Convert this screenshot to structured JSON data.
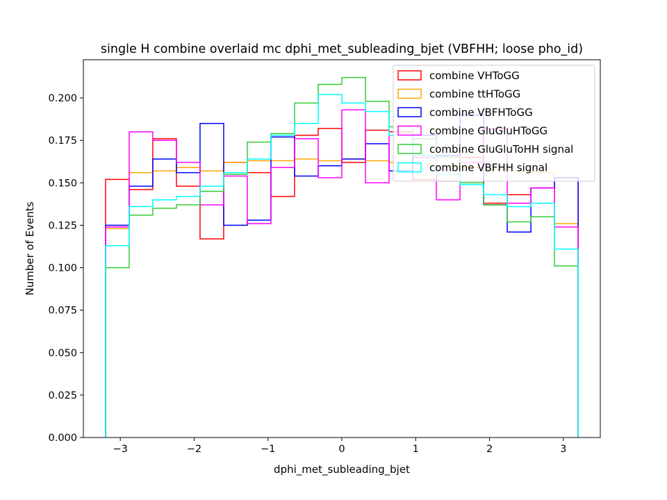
{
  "chart_data": {
    "type": "histogram",
    "title": "single H combine overlaid mc dphi_met_subleading_bjet (VBFHH; loose pho_id)",
    "xlabel": "dphi_met_subleading_bjet",
    "ylabel": "Number of Events",
    "xlim": [
      -3.5,
      3.5
    ],
    "ylim": [
      0.0,
      0.2225
    ],
    "xticks": [
      -3,
      -2,
      -1,
      0,
      1,
      2,
      3
    ],
    "xtick_labels": [
      "−3",
      "−2",
      "−1",
      "0",
      "1",
      "2",
      "3"
    ],
    "yticks": [
      0.0,
      0.025,
      0.05,
      0.075,
      0.1,
      0.125,
      0.15,
      0.175,
      0.2
    ],
    "ytick_labels": [
      "0.000",
      "0.025",
      "0.050",
      "0.075",
      "0.100",
      "0.125",
      "0.150",
      "0.175",
      "0.200"
    ],
    "bin_edges": [
      -3.2,
      -2.88,
      -2.56,
      -2.24,
      -1.92,
      -1.6,
      -1.28,
      -0.96,
      -0.64,
      -0.32,
      0.0,
      0.32,
      0.64,
      0.96,
      1.28,
      1.6,
      1.92,
      2.24,
      2.56,
      2.88,
      3.2
    ],
    "legend_position": "upper right",
    "grid": false,
    "series": [
      {
        "name": "combine VHToGG",
        "color": "#ff0000",
        "values": [
          0.152,
          0.146,
          0.176,
          0.148,
          0.117,
          0.162,
          0.156,
          0.142,
          0.178,
          0.182,
          0.162,
          0.181,
          0.18,
          0.152,
          0.151,
          0.165,
          0.138,
          0.143,
          0.147,
          0.153
        ]
      },
      {
        "name": "combine ttHToGG",
        "color": "#ffa500",
        "values": [
          0.123,
          0.156,
          0.157,
          0.159,
          0.157,
          0.162,
          0.163,
          0.163,
          0.164,
          0.163,
          0.164,
          0.163,
          0.162,
          0.161,
          0.16,
          0.159,
          0.158,
          0.157,
          0.156,
          0.126
        ]
      },
      {
        "name": "combine VBFHToGG",
        "color": "#0000ff",
        "values": [
          0.125,
          0.148,
          0.164,
          0.156,
          0.185,
          0.125,
          0.128,
          0.177,
          0.154,
          0.16,
          0.164,
          0.173,
          0.157,
          0.178,
          0.166,
          0.19,
          0.137,
          0.121,
          0.147,
          0.153
        ]
      },
      {
        "name": "combine GluGluHToGG",
        "color": "#ff00ff",
        "values": [
          0.124,
          0.18,
          0.175,
          0.162,
          0.137,
          0.154,
          0.126,
          0.159,
          0.176,
          0.153,
          0.193,
          0.15,
          0.178,
          0.165,
          0.14,
          0.162,
          0.182,
          0.138,
          0.147,
          0.124
        ]
      },
      {
        "name": "combine GluGluToHH signal",
        "color": "#33cc33",
        "values": [
          0.1,
          0.131,
          0.135,
          0.137,
          0.145,
          0.155,
          0.174,
          0.179,
          0.197,
          0.208,
          0.212,
          0.198,
          0.183,
          0.176,
          0.165,
          0.15,
          0.137,
          0.127,
          0.13,
          0.101
        ]
      },
      {
        "name": "combine VBFHH signal",
        "color": "#00ffff",
        "values": [
          0.113,
          0.136,
          0.14,
          0.142,
          0.148,
          0.156,
          0.164,
          0.178,
          0.185,
          0.202,
          0.197,
          0.192,
          0.178,
          0.166,
          0.155,
          0.149,
          0.143,
          0.136,
          0.138,
          0.111
        ]
      }
    ]
  }
}
